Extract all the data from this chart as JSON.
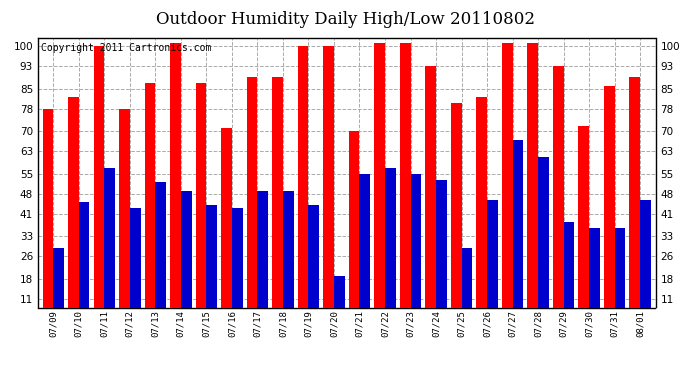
{
  "title": "Outdoor Humidity Daily High/Low 20110802",
  "copyright": "Copyright 2011 Cartronics.com",
  "dates": [
    "07/09",
    "07/10",
    "07/11",
    "07/12",
    "07/13",
    "07/14",
    "07/15",
    "07/16",
    "07/17",
    "07/18",
    "07/19",
    "07/20",
    "07/21",
    "07/22",
    "07/23",
    "07/24",
    "07/25",
    "07/26",
    "07/27",
    "07/28",
    "07/29",
    "07/30",
    "07/31",
    "08/01"
  ],
  "highs": [
    78,
    82,
    100,
    78,
    87,
    101,
    87,
    71,
    89,
    89,
    100,
    100,
    70,
    101,
    101,
    93,
    80,
    82,
    101,
    101,
    93,
    72,
    86,
    89
  ],
  "lows": [
    29,
    45,
    57,
    43,
    52,
    49,
    44,
    43,
    49,
    49,
    44,
    19,
    55,
    57,
    55,
    53,
    29,
    46,
    67,
    61,
    38,
    36,
    36,
    46
  ],
  "high_color": "#ff0000",
  "low_color": "#0000cc",
  "bg_color": "#ffffff",
  "yticks": [
    11,
    18,
    26,
    33,
    41,
    48,
    55,
    63,
    70,
    78,
    85,
    93,
    100
  ],
  "ylim": [
    8,
    103
  ],
  "grid_color": "#aaaaaa",
  "bar_width": 0.42,
  "title_fontsize": 12,
  "copyright_fontsize": 7
}
